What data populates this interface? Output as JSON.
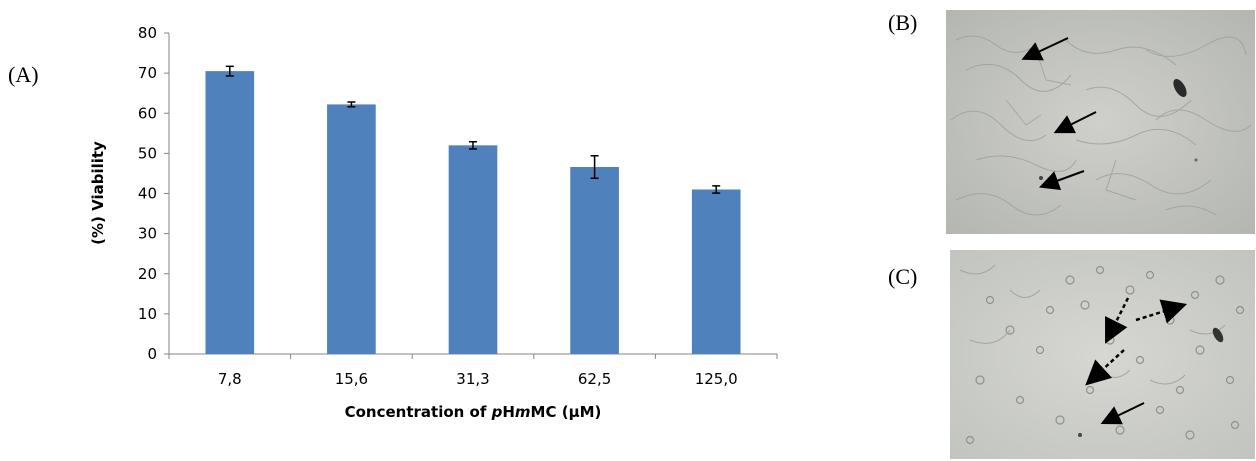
{
  "panels": {
    "a": "(A)",
    "b": "(B)",
    "c": "(C)"
  },
  "chart_data": {
    "type": "bar",
    "categories": [
      "7,8",
      "15,6",
      "31,3",
      "62,5",
      "125,0"
    ],
    "values": [
      70.5,
      62.2,
      52.0,
      46.6,
      41.0
    ],
    "errors": [
      1.2,
      0.6,
      0.9,
      2.8,
      0.9
    ],
    "ylabel": "(%) Viability",
    "xlabel_parts": [
      {
        "text": "Concentration of ",
        "italic": false
      },
      {
        "text": "p",
        "italic": true
      },
      {
        "text": "H",
        "italic": false
      },
      {
        "text": "m",
        "italic": true
      },
      {
        "text": "MC (",
        "italic": false
      },
      {
        "text": "μ",
        "italic": false
      },
      {
        "text": "M)",
        "italic": false
      }
    ],
    "ylim": [
      0,
      80
    ],
    "yticks": [
      0,
      10,
      20,
      30,
      40,
      50,
      60,
      70,
      80
    ],
    "grid": false,
    "bar_color": "#4f81bd"
  },
  "images": {
    "b": {
      "description_icon": "microscopy-image",
      "arrows": [
        {
          "style": "solid"
        },
        {
          "style": "solid"
        },
        {
          "style": "solid"
        }
      ]
    },
    "c": {
      "description_icon": "microscopy-image",
      "arrows": [
        {
          "style": "dotted"
        },
        {
          "style": "dotted"
        },
        {
          "style": "dotted"
        },
        {
          "style": "solid"
        }
      ]
    }
  }
}
